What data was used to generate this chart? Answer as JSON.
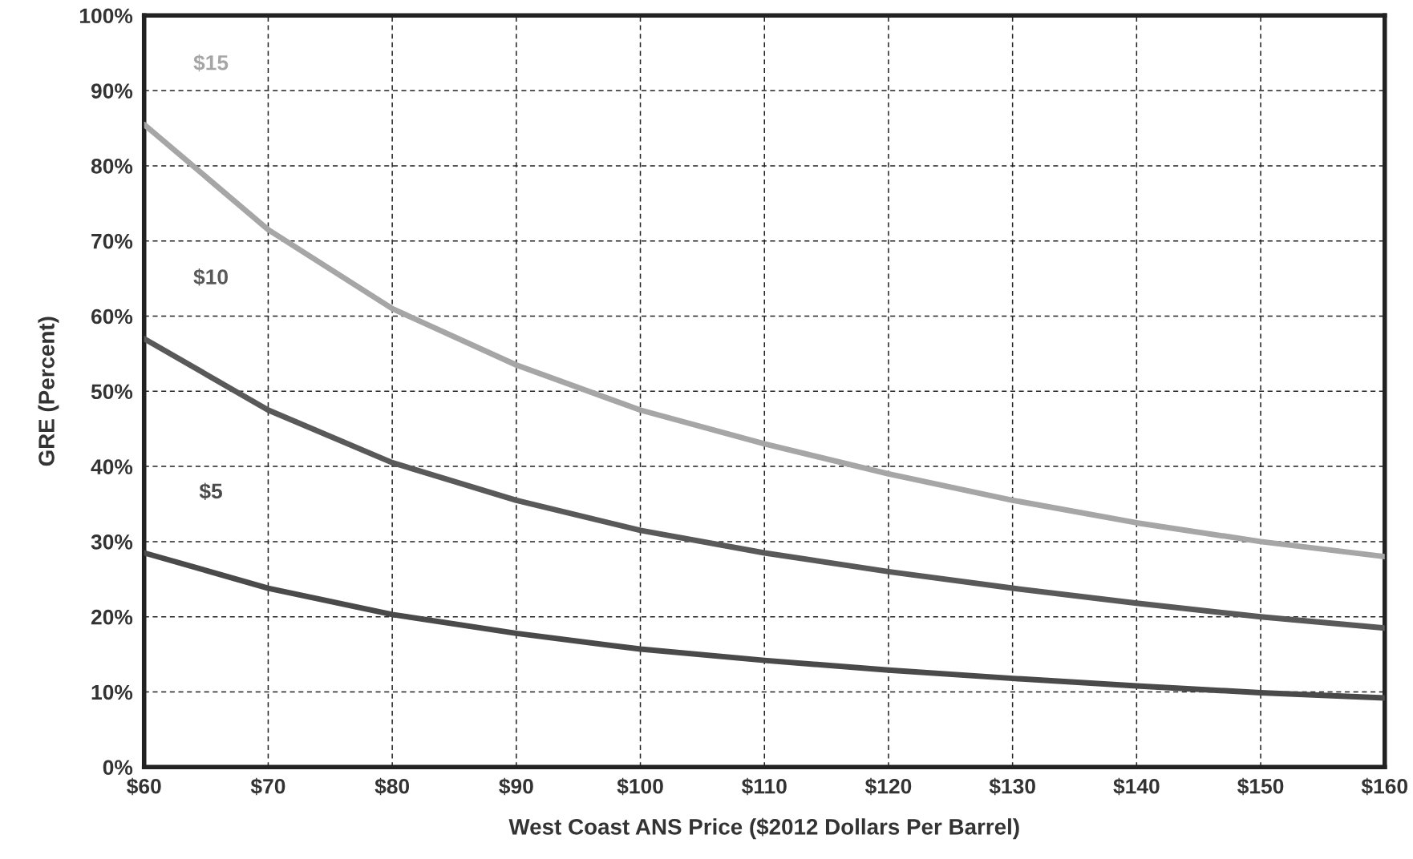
{
  "chart_data": {
    "type": "line",
    "xlabel": "West Coast ANS Price ($2012 Dollars Per Barrel)",
    "ylabel": "GRE (Percent)",
    "x": [
      60,
      70,
      80,
      90,
      100,
      110,
      120,
      130,
      140,
      150,
      160
    ],
    "series": [
      {
        "name": "$15",
        "color": "#a6a6a6",
        "values": [
          85.5,
          71.5,
          61,
          53.5,
          47.5,
          43,
          39,
          35.5,
          32.5,
          30,
          28
        ]
      },
      {
        "name": "$10",
        "color": "#595959",
        "values": [
          57,
          47.5,
          40.5,
          35.5,
          31.5,
          28.5,
          26,
          23.8,
          21.8,
          20,
          18.5
        ]
      },
      {
        "name": "$5",
        "color": "#4a4a4a",
        "values": [
          28.5,
          23.8,
          20.3,
          17.8,
          15.7,
          14.2,
          12.9,
          11.8,
          10.8,
          9.9,
          9.2
        ]
      }
    ],
    "xlim": [
      60,
      160
    ],
    "ylim": [
      0,
      100
    ],
    "xticks": [
      {
        "value": 60,
        "label": "$60"
      },
      {
        "value": 70,
        "label": "$70"
      },
      {
        "value": 80,
        "label": "$80"
      },
      {
        "value": 90,
        "label": "$90"
      },
      {
        "value": 100,
        "label": "$100"
      },
      {
        "value": 110,
        "label": "$110"
      },
      {
        "value": 120,
        "label": "$120"
      },
      {
        "value": 130,
        "label": "$130"
      },
      {
        "value": 140,
        "label": "$140"
      },
      {
        "value": 150,
        "label": "$150"
      },
      {
        "value": 160,
        "label": "$160"
      }
    ],
    "yticks": [
      {
        "value": 0,
        "label": "0%"
      },
      {
        "value": 10,
        "label": "10%"
      },
      {
        "value": 20,
        "label": "20%"
      },
      {
        "value": 30,
        "label": "30%"
      },
      {
        "value": 40,
        "label": "40%"
      },
      {
        "value": 50,
        "label": "50%"
      },
      {
        "value": 60,
        "label": "60%"
      },
      {
        "value": 70,
        "label": "70%"
      },
      {
        "value": 80,
        "label": "80%"
      },
      {
        "value": 90,
        "label": "90%"
      },
      {
        "value": 100,
        "label": "100%"
      }
    ],
    "grid": true,
    "legend": false,
    "marker": "none",
    "line_style": "solid"
  }
}
